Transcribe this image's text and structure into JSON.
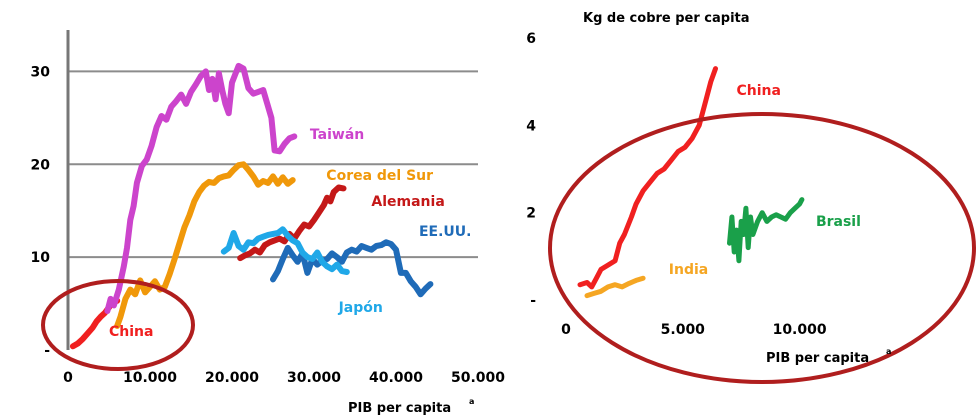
{
  "colors": {
    "china": "#f02020",
    "taiwan": "#cc44cc",
    "corea": "#f0980a",
    "alemania": "#c41818",
    "eeuu": "#1f6bb8",
    "japon": "#20a8e8",
    "india": "#f5a623",
    "brasil": "#1aa04a",
    "highlight": "#b01e1e",
    "grid": "#8c8c8c"
  },
  "chart_data": [
    {
      "type": "line",
      "title": "",
      "xlabel": "PIB per capita",
      "xlabel_mark": "a",
      "ylabel": "",
      "xlim": [
        0,
        50000
      ],
      "ylim": [
        0,
        35
      ],
      "grid": "horizontal",
      "x_tick_labels": [
        "0",
        "10.000",
        "20.000",
        "30.000",
        "40.000",
        "50.000"
      ],
      "x_tick_values": [
        0,
        10000,
        20000,
        30000,
        40000,
        50000
      ],
      "y_tick_labels": [
        "-",
        "10",
        "20",
        "30"
      ],
      "y_tick_values": [
        0,
        10,
        20,
        30
      ],
      "highlight": "China",
      "series": [
        {
          "name": "China",
          "color_key": "china",
          "label_at": [
            5000,
            1.5
          ],
          "points": [
            [
              600,
              0.4
            ],
            [
              1200,
              0.7
            ],
            [
              1800,
              1.2
            ],
            [
              2400,
              1.8
            ],
            [
              3000,
              2.4
            ],
            [
              3500,
              3.1
            ],
            [
              4000,
              3.6
            ],
            [
              4500,
              4.0
            ],
            [
              5000,
              4.6
            ],
            [
              5500,
              5.2
            ],
            [
              6000,
              5.3
            ]
          ]
        },
        {
          "name": "Taiwán",
          "color_key": "taiwan",
          "label_at": [
            29500,
            22.7
          ],
          "points": [
            [
              4800,
              4.2
            ],
            [
              5200,
              5.5
            ],
            [
              5600,
              4.8
            ],
            [
              6200,
              6.5
            ],
            [
              6800,
              9.0
            ],
            [
              7200,
              11.0
            ],
            [
              7600,
              14.0
            ],
            [
              8000,
              15.5
            ],
            [
              8400,
              18.0
            ],
            [
              9000,
              19.8
            ],
            [
              9600,
              20.5
            ],
            [
              10200,
              22.0
            ],
            [
              10800,
              24.0
            ],
            [
              11400,
              25.2
            ],
            [
              12000,
              24.8
            ],
            [
              12600,
              26.2
            ],
            [
              13200,
              26.8
            ],
            [
              13800,
              27.5
            ],
            [
              14400,
              26.5
            ],
            [
              15000,
              27.8
            ],
            [
              15600,
              28.6
            ],
            [
              16200,
              29.5
            ],
            [
              16800,
              30.0
            ],
            [
              17200,
              28.0
            ],
            [
              17600,
              29.2
            ],
            [
              18000,
              27.0
            ],
            [
              18400,
              29.8
            ],
            [
              18800,
              28.0
            ],
            [
              19200,
              26.5
            ],
            [
              19600,
              25.5
            ],
            [
              20000,
              28.8
            ],
            [
              20400,
              29.7
            ],
            [
              20800,
              30.6
            ],
            [
              21400,
              30.3
            ],
            [
              22000,
              28.2
            ],
            [
              22600,
              27.6
            ],
            [
              23200,
              27.8
            ],
            [
              23800,
              28.0
            ],
            [
              24300,
              26.5
            ],
            [
              24800,
              25.0
            ],
            [
              25200,
              21.5
            ],
            [
              25800,
              21.4
            ],
            [
              26400,
              22.2
            ],
            [
              27000,
              22.8
            ],
            [
              27600,
              23.0
            ]
          ]
        },
        {
          "name": "Corea del Sur",
          "color_key": "corea",
          "label_at": [
            31500,
            18.3
          ],
          "points": [
            [
              6000,
              2.6
            ],
            [
              6400,
              3.6
            ],
            [
              7000,
              5.5
            ],
            [
              7600,
              6.5
            ],
            [
              8200,
              6.0
            ],
            [
              8800,
              7.5
            ],
            [
              9400,
              6.2
            ],
            [
              10000,
              6.8
            ],
            [
              10600,
              7.4
            ],
            [
              11200,
              6.5
            ],
            [
              11800,
              6.8
            ],
            [
              12400,
              8.2
            ],
            [
              13000,
              9.8
            ],
            [
              13600,
              11.5
            ],
            [
              14200,
              13.2
            ],
            [
              14800,
              14.5
            ],
            [
              15400,
              16.0
            ],
            [
              16000,
              17.0
            ],
            [
              16600,
              17.7
            ],
            [
              17200,
              18.1
            ],
            [
              17800,
              18.0
            ],
            [
              18400,
              18.5
            ],
            [
              19000,
              18.7
            ],
            [
              19600,
              18.8
            ],
            [
              20200,
              19.4
            ],
            [
              20800,
              19.9
            ],
            [
              21400,
              20.0
            ],
            [
              22000,
              19.4
            ],
            [
              22600,
              18.7
            ],
            [
              23200,
              17.8
            ],
            [
              23800,
              18.2
            ],
            [
              24400,
              18.0
            ],
            [
              25000,
              18.7
            ],
            [
              25600,
              17.9
            ],
            [
              26200,
              18.6
            ],
            [
              26800,
              17.9
            ],
            [
              27400,
              18.3
            ]
          ]
        },
        {
          "name": "Alemania",
          "color_key": "alemania",
          "label_at": [
            37000,
            15.5
          ],
          "points": [
            [
              21000,
              9.9
            ],
            [
              21600,
              10.2
            ],
            [
              22200,
              10.4
            ],
            [
              22800,
              10.8
            ],
            [
              23400,
              10.5
            ],
            [
              24000,
              11.3
            ],
            [
              24600,
              11.6
            ],
            [
              25200,
              11.8
            ],
            [
              25800,
              12.0
            ],
            [
              26400,
              11.7
            ],
            [
              27000,
              12.5
            ],
            [
              27600,
              12.0
            ],
            [
              28200,
              12.8
            ],
            [
              28800,
              13.5
            ],
            [
              29400,
              13.3
            ],
            [
              30000,
              14.0
            ],
            [
              30600,
              14.8
            ],
            [
              31200,
              15.6
            ],
            [
              31600,
              16.4
            ],
            [
              32000,
              16.0
            ],
            [
              32400,
              17.0
            ],
            [
              33000,
              17.5
            ],
            [
              33600,
              17.4
            ]
          ]
        },
        {
          "name": "EE.UU.",
          "color_key": "eeuu",
          "label_at": [
            42800,
            12.3
          ],
          "points": [
            [
              25000,
              7.6
            ],
            [
              25600,
              8.5
            ],
            [
              26200,
              9.8
            ],
            [
              26800,
              11.0
            ],
            [
              27400,
              10.2
            ],
            [
              28000,
              9.5
            ],
            [
              28600,
              10.4
            ],
            [
              29200,
              8.3
            ],
            [
              29800,
              9.8
            ],
            [
              30400,
              9.2
            ],
            [
              31000,
              9.6
            ],
            [
              31600,
              9.8
            ],
            [
              32200,
              10.4
            ],
            [
              32800,
              10.0
            ],
            [
              33400,
              9.5
            ],
            [
              34000,
              10.5
            ],
            [
              34600,
              10.8
            ],
            [
              35200,
              10.6
            ],
            [
              35800,
              11.2
            ],
            [
              36400,
              11.0
            ],
            [
              37000,
              10.8
            ],
            [
              37600,
              11.2
            ],
            [
              38200,
              11.3
            ],
            [
              38800,
              11.6
            ],
            [
              39400,
              11.4
            ],
            [
              40000,
              10.8
            ],
            [
              40600,
              8.3
            ],
            [
              41200,
              8.3
            ],
            [
              41800,
              7.4
            ],
            [
              42400,
              6.8
            ],
            [
              43000,
              6.0
            ],
            [
              43600,
              6.6
            ],
            [
              44200,
              7.1
            ]
          ]
        },
        {
          "name": "Japón",
          "color_key": "japon",
          "label_at": [
            33000,
            4.1
          ],
          "points": [
            [
              19000,
              10.6
            ],
            [
              19600,
              11.0
            ],
            [
              20200,
              12.6
            ],
            [
              20800,
              11.2
            ],
            [
              21400,
              10.8
            ],
            [
              22000,
              11.6
            ],
            [
              22600,
              11.5
            ],
            [
              23200,
              12.0
            ],
            [
              23800,
              12.2
            ],
            [
              24400,
              12.4
            ],
            [
              25000,
              12.5
            ],
            [
              25600,
              12.6
            ],
            [
              26200,
              13.0
            ],
            [
              26800,
              12.3
            ],
            [
              27400,
              11.8
            ],
            [
              28000,
              11.5
            ],
            [
              28600,
              10.5
            ],
            [
              29200,
              10.0
            ],
            [
              29800,
              9.8
            ],
            [
              30400,
              10.5
            ],
            [
              31000,
              9.5
            ],
            [
              31600,
              9.0
            ],
            [
              32200,
              8.7
            ],
            [
              32800,
              9.2
            ],
            [
              33400,
              8.5
            ],
            [
              34000,
              8.4
            ]
          ]
        }
      ]
    },
    {
      "type": "line",
      "title": "Kg de cobre per capita",
      "xlabel": "PIB per capita",
      "xlabel_mark": "a",
      "ylabel": "",
      "xlim": [
        0,
        12500
      ],
      "ylim": [
        0,
        6
      ],
      "grid": "none",
      "x_tick_labels": [
        "0",
        "5.000",
        "10.000"
      ],
      "x_tick_values": [
        0,
        5000,
        10000
      ],
      "y_tick_labels": [
        "-",
        "2",
        "4",
        "6"
      ],
      "y_tick_values": [
        0,
        2,
        4,
        6
      ],
      "series": [
        {
          "name": "China",
          "color_key": "china",
          "label_at": [
            7300,
            4.7
          ],
          "points": [
            [
              600,
              0.35
            ],
            [
              900,
              0.4
            ],
            [
              1100,
              0.3
            ],
            [
              1300,
              0.5
            ],
            [
              1500,
              0.7
            ],
            [
              1800,
              0.8
            ],
            [
              2100,
              0.9
            ],
            [
              2300,
              1.3
            ],
            [
              2500,
              1.5
            ],
            [
              2800,
              1.9
            ],
            [
              3000,
              2.2
            ],
            [
              3300,
              2.5
            ],
            [
              3600,
              2.7
            ],
            [
              3900,
              2.9
            ],
            [
              4200,
              3.0
            ],
            [
              4500,
              3.2
            ],
            [
              4800,
              3.4
            ],
            [
              5100,
              3.5
            ],
            [
              5400,
              3.7
            ],
            [
              5700,
              4.0
            ],
            [
              6000,
              4.6
            ],
            [
              6200,
              5.0
            ],
            [
              6400,
              5.3
            ]
          ]
        },
        {
          "name": "India",
          "color_key": "india",
          "label_at": [
            4400,
            0.6
          ],
          "points": [
            [
              900,
              0.1
            ],
            [
              1200,
              0.15
            ],
            [
              1500,
              0.2
            ],
            [
              1800,
              0.3
            ],
            [
              2100,
              0.35
            ],
            [
              2400,
              0.3
            ],
            [
              2700,
              0.38
            ],
            [
              3000,
              0.45
            ],
            [
              3300,
              0.5
            ]
          ]
        },
        {
          "name": "Brasil",
          "color_key": "brasil",
          "label_at": [
            10700,
            1.7
          ],
          "points": [
            [
              7000,
              1.3
            ],
            [
              7100,
              1.9
            ],
            [
              7200,
              1.1
            ],
            [
              7300,
              1.6
            ],
            [
              7400,
              0.9
            ],
            [
              7500,
              1.8
            ],
            [
              7600,
              1.5
            ],
            [
              7700,
              2.1
            ],
            [
              7800,
              1.2
            ],
            [
              7900,
              1.9
            ],
            [
              8000,
              1.5
            ],
            [
              8200,
              1.8
            ],
            [
              8400,
              2.0
            ],
            [
              8600,
              1.8
            ],
            [
              8800,
              1.9
            ],
            [
              9000,
              1.95
            ],
            [
              9200,
              1.9
            ],
            [
              9400,
              1.85
            ],
            [
              9600,
              2.0
            ],
            [
              9800,
              2.1
            ],
            [
              10000,
              2.2
            ],
            [
              10100,
              2.3
            ]
          ]
        }
      ]
    }
  ]
}
